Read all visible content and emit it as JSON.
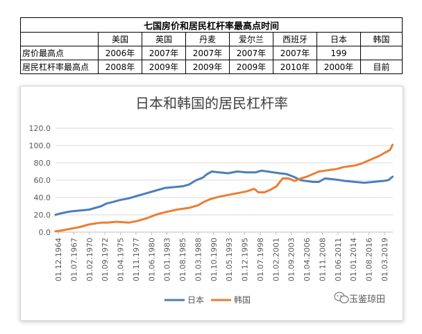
{
  "table": {
    "title": "七国房价和居民杠杆率最高点时间",
    "header": [
      "",
      "美国",
      "英国",
      "丹麦",
      "爱尔兰",
      "西班牙",
      "日本",
      "韩国"
    ],
    "rows": [
      [
        "房价最高点",
        "2006年",
        "2007年",
        "2007年",
        "2007年",
        "2007年",
        "199",
        ""
      ],
      [
        "居民杠杆率最高点",
        "2008年",
        "2009年",
        "2009年",
        "2009年",
        "2010年",
        "2000年",
        "目前"
      ]
    ]
  },
  "watermark": {
    "text": "玉鉴琼田",
    "icon": "wechat-icon"
  },
  "colors": {
    "japan": "#4a7ebb",
    "korea": "#ed7d31",
    "grid": "#d9d9d9",
    "axis": "#bfbfbf"
  },
  "chart_data": {
    "type": "line",
    "title": "日本和韩国的居民杠杆率",
    "xlabel": "",
    "ylabel": "",
    "ylim": [
      0,
      120
    ],
    "yticks": [
      "0.0",
      "20.0",
      "40.0",
      "60.0",
      "80.0",
      "100.0",
      "120.0"
    ],
    "xlim": [
      1964.917,
      2020.75
    ],
    "xtick_labels": [
      "01.12.1964",
      "01.07.1967",
      "01.02.1970",
      "01.09.1972",
      "01.04.1975",
      "01.11.1977",
      "01.06.1980",
      "01.01.1983",
      "01.08.1985",
      "01.03.1988",
      "01.10.1990",
      "01.05.1993",
      "01.12.1995",
      "01.07.1998",
      "01.02.2001",
      "01.09.2003",
      "01.04.2006",
      "01.11.2008",
      "01.06.2011",
      "01.01.2014",
      "01.08.2016",
      "01.03.2019"
    ],
    "grid": true,
    "legend": "bottom",
    "series": [
      {
        "name": "日本",
        "color": "#4a7ebb",
        "x": [
          1964.9,
          1966,
          1967.5,
          1969,
          1970.5,
          1971.5,
          1972.5,
          1973.3,
          1974.5,
          1975.5,
          1977,
          1978.5,
          1980,
          1981.5,
          1983,
          1984.5,
          1986,
          1987,
          1988.2,
          1989.3,
          1990,
          1990.8,
          1992,
          1993.5,
          1995,
          1996.5,
          1998,
          1999,
          2000,
          2001,
          2002,
          2003.2,
          2004.3,
          2005.5,
          2006.5,
          2007.5,
          2008.5,
          2009.5,
          2011,
          2012,
          2013,
          2014.5,
          2016,
          2017.5,
          2019,
          2020,
          2020.7
        ],
        "y": [
          20,
          22,
          24,
          25,
          26,
          28,
          30,
          33,
          35,
          37,
          39,
          42,
          45,
          48,
          51,
          52,
          53,
          55,
          60,
          63,
          67,
          70,
          69,
          68,
          70,
          69,
          69,
          71,
          70,
          69,
          68,
          67,
          64,
          60,
          59,
          58,
          58,
          62,
          61,
          60,
          59,
          58,
          57,
          58,
          59,
          60,
          64
        ]
      },
      {
        "name": "韩国",
        "color": "#ed7d31",
        "x": [
          1964.9,
          1966,
          1967.5,
          1969,
          1970.5,
          1971.5,
          1972.5,
          1973.5,
          1975,
          1977,
          1978.5,
          1980,
          1981.5,
          1983,
          1985,
          1987,
          1988.5,
          1989.5,
          1990.5,
          1992,
          1993.5,
          1995,
          1996.5,
          1997.8,
          1998.5,
          1999.5,
          2000.5,
          2001.5,
          2002.5,
          2003.5,
          2004.5,
          2005.5,
          2006.5,
          2007.5,
          2008.5,
          2009.5,
          2010.5,
          2011.5,
          2012.5,
          2013.5,
          2014.5,
          2015.5,
          2016.5,
          2017.5,
          2018.5,
          2019.5,
          2020.3,
          2020.7
        ],
        "y": [
          1,
          2,
          4,
          6,
          9,
          10,
          11,
          11,
          12,
          11,
          13,
          16,
          20,
          23,
          26,
          28,
          31,
          35,
          38,
          41,
          43,
          45,
          47,
          50,
          46,
          46,
          49,
          53,
          62,
          62,
          59,
          62,
          64,
          67,
          70,
          71,
          72,
          73,
          75,
          76,
          77,
          79,
          82,
          85,
          88,
          92,
          95,
          101
        ]
      }
    ]
  }
}
